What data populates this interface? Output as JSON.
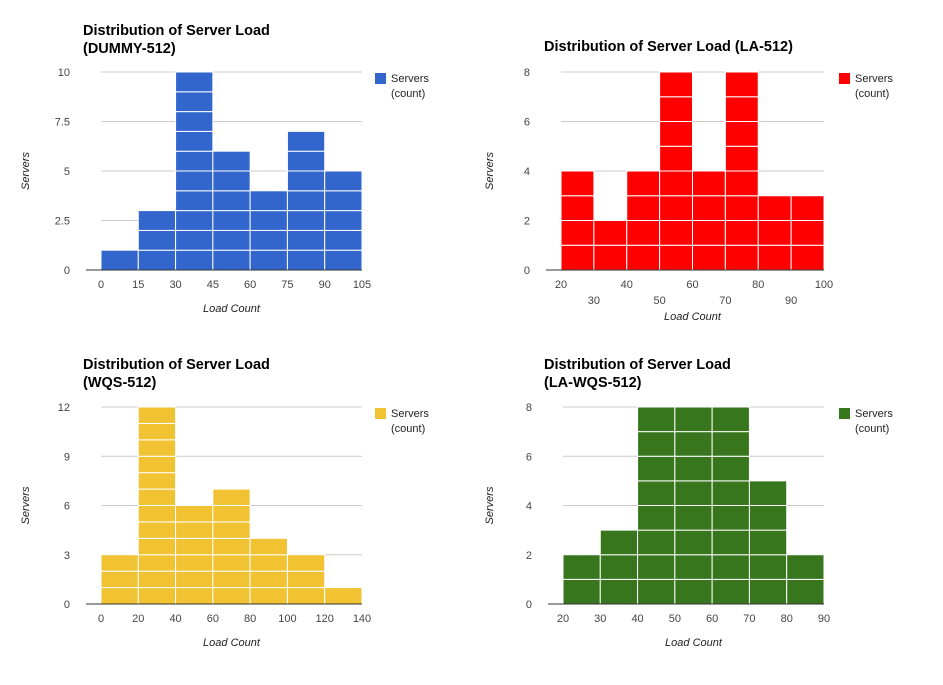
{
  "chart_data": [
    {
      "type": "histogram",
      "title_lines": [
        "Distribution of Server Load",
        "(DUMMY-512)"
      ],
      "xlabel": "Load Count",
      "ylabel": "Servers",
      "legend": "Servers (count)",
      "legend_lines": [
        "Servers",
        "(count)"
      ],
      "legend_position": "right",
      "color": "#3366cc",
      "grid": true,
      "xlim": [
        0,
        105
      ],
      "ylim": [
        0,
        10
      ],
      "x_ticks": [
        "0",
        "15",
        "30",
        "45",
        "60",
        "75",
        "90",
        "105"
      ],
      "y_ticks": [
        "0",
        "2.5",
        "5",
        "7.5",
        "10"
      ],
      "bins": [
        {
          "x0": 0,
          "x1": 15,
          "count": 1
        },
        {
          "x0": 15,
          "x1": 30,
          "count": 3
        },
        {
          "x0": 30,
          "x1": 45,
          "count": 10
        },
        {
          "x0": 45,
          "x1": 60,
          "count": 6
        },
        {
          "x0": 60,
          "x1": 75,
          "count": 4
        },
        {
          "x0": 75,
          "x1": 90,
          "count": 7
        },
        {
          "x0": 90,
          "x1": 105,
          "count": 5
        }
      ]
    },
    {
      "type": "histogram",
      "title_lines": [
        "Distribution of Server Load (LA-512)"
      ],
      "xlabel": "Load Count",
      "ylabel": "Servers",
      "legend": "Servers (count)",
      "legend_lines": [
        "Servers",
        "(count)"
      ],
      "legend_position": "right",
      "color": "#ff0000",
      "grid": true,
      "xlim": [
        20,
        100
      ],
      "ylim": [
        0,
        8
      ],
      "x_ticks": [
        "20",
        "30",
        "40",
        "50",
        "60",
        "70",
        "80",
        "90",
        "100"
      ],
      "x_ticks_staggered": true,
      "y_ticks": [
        "0",
        "2",
        "4",
        "6",
        "8"
      ],
      "bins": [
        {
          "x0": 20,
          "x1": 30,
          "count": 4
        },
        {
          "x0": 30,
          "x1": 40,
          "count": 2
        },
        {
          "x0": 40,
          "x1": 50,
          "count": 4
        },
        {
          "x0": 50,
          "x1": 60,
          "count": 8
        },
        {
          "x0": 60,
          "x1": 70,
          "count": 4
        },
        {
          "x0": 70,
          "x1": 80,
          "count": 8
        },
        {
          "x0": 80,
          "x1": 90,
          "count": 3
        },
        {
          "x0": 90,
          "x1": 100,
          "count": 3
        }
      ]
    },
    {
      "type": "histogram",
      "title_lines": [
        "Distribution of Server Load",
        "(WQS-512)"
      ],
      "xlabel": "Load Count",
      "ylabel": "Servers",
      "legend": "Servers (count)",
      "legend_lines": [
        "Servers",
        "(count)"
      ],
      "legend_position": "right",
      "color": "#f1c232",
      "grid": true,
      "xlim": [
        0,
        140
      ],
      "ylim": [
        0,
        12
      ],
      "x_ticks": [
        "0",
        "20",
        "40",
        "60",
        "80",
        "100",
        "120",
        "140"
      ],
      "y_ticks": [
        "0",
        "3",
        "6",
        "9",
        "12"
      ],
      "bins": [
        {
          "x0": 0,
          "x1": 20,
          "count": 3
        },
        {
          "x0": 20,
          "x1": 40,
          "count": 12
        },
        {
          "x0": 40,
          "x1": 60,
          "count": 6
        },
        {
          "x0": 60,
          "x1": 80,
          "count": 7
        },
        {
          "x0": 80,
          "x1": 100,
          "count": 4
        },
        {
          "x0": 100,
          "x1": 120,
          "count": 3
        },
        {
          "x0": 120,
          "x1": 140,
          "count": 1
        }
      ]
    },
    {
      "type": "histogram",
      "title_lines": [
        "Distribution of Server Load",
        "(LA-WQS-512)"
      ],
      "xlabel": "Load Count",
      "ylabel": "Servers",
      "legend": "Servers (count)",
      "legend_lines": [
        "Servers",
        "(count)"
      ],
      "legend_position": "right",
      "color": "#38761d",
      "grid": true,
      "xlim": [
        20,
        90
      ],
      "ylim": [
        0,
        8
      ],
      "x_ticks": [
        "20",
        "30",
        "40",
        "50",
        "60",
        "70",
        "80",
        "90"
      ],
      "y_ticks": [
        "0",
        "2",
        "4",
        "6",
        "8"
      ],
      "bins": [
        {
          "x0": 20,
          "x1": 30,
          "count": 2
        },
        {
          "x0": 30,
          "x1": 40,
          "count": 3
        },
        {
          "x0": 40,
          "x1": 50,
          "count": 8
        },
        {
          "x0": 50,
          "x1": 60,
          "count": 8
        },
        {
          "x0": 60,
          "x1": 70,
          "count": 8
        },
        {
          "x0": 70,
          "x1": 80,
          "count": 5
        },
        {
          "x0": 80,
          "x1": 90,
          "count": 2
        }
      ]
    }
  ]
}
